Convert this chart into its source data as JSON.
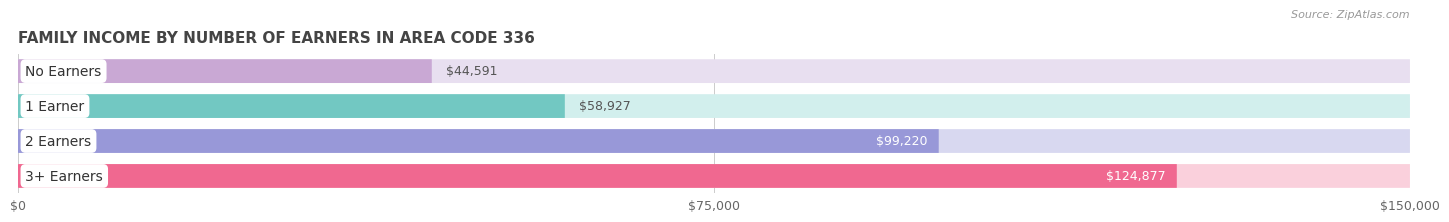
{
  "title": "FAMILY INCOME BY NUMBER OF EARNERS IN AREA CODE 336",
  "source": "Source: ZipAtlas.com",
  "categories": [
    "No Earners",
    "1 Earner",
    "2 Earners",
    "3+ Earners"
  ],
  "values": [
    44591,
    58927,
    99220,
    124877
  ],
  "bar_colors": [
    "#c9a8d4",
    "#72c8c2",
    "#9898d8",
    "#f06890"
  ],
  "bar_bg_colors": [
    "#e8dff0",
    "#d2efed",
    "#d8d8f0",
    "#fad0dc"
  ],
  "value_labels": [
    "$44,591",
    "$58,927",
    "$99,220",
    "$124,877"
  ],
  "xlim": [
    0,
    150000
  ],
  "xticks": [
    0,
    75000,
    150000
  ],
  "xtick_labels": [
    "$0",
    "$75,000",
    "$150,000"
  ],
  "background_color": "#ffffff",
  "title_color": "#444444",
  "title_fontsize": 11,
  "label_fontsize": 10,
  "value_fontsize": 9,
  "value_color_inside": "#ffffff",
  "value_color_outside": "#555555",
  "source_color": "#999999"
}
